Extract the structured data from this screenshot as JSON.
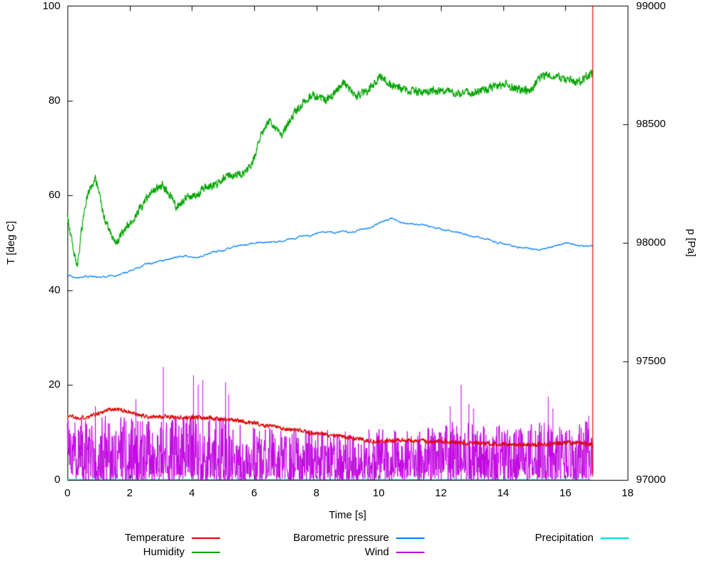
{
  "chart_data": {
    "type": "line",
    "title": "",
    "xlabel": "Time [s]",
    "ylabel_left": "T [deg C]",
    "ylabel_right": "p [Pa]",
    "x_range": [
      0,
      18
    ],
    "y_left_range": [
      0,
      100
    ],
    "y_right_range": [
      97000,
      99000
    ],
    "x_ticks": [
      0,
      2,
      4,
      6,
      8,
      10,
      12,
      14,
      16,
      18
    ],
    "y_left_ticks": [
      0,
      20,
      40,
      60,
      80,
      100
    ],
    "y_right_ticks": [
      97000,
      97500,
      98000,
      98500,
      99000
    ],
    "grid": false,
    "legend_position": "below",
    "x_end": 16.88,
    "seed": 1337,
    "draw_order": [
      4,
      3,
      2,
      1,
      0
    ],
    "series": [
      {
        "name": "Temperature",
        "color": "#dd0000",
        "axis": "left",
        "line_width": 1.2,
        "noise_amp": 0.28,
        "noise_smooth": 0.35,
        "step": 0.01,
        "end_line": [
          16.88,
          0.8,
          100
        ],
        "points": [
          [
            0,
            13.2
          ],
          [
            0.1,
            13.6
          ],
          [
            0.3,
            13.1
          ],
          [
            0.5,
            13.2
          ],
          [
            0.7,
            13.4
          ],
          [
            0.9,
            13.8
          ],
          [
            1.1,
            14.3
          ],
          [
            1.3,
            14.8
          ],
          [
            1.5,
            15.0
          ],
          [
            1.7,
            14.8
          ],
          [
            1.9,
            14.5
          ],
          [
            2.1,
            14.0
          ],
          [
            2.3,
            13.6
          ],
          [
            2.5,
            13.4
          ],
          [
            2.8,
            13.3
          ],
          [
            3.2,
            13.4
          ],
          [
            3.6,
            13.2
          ],
          [
            4.0,
            13.1
          ],
          [
            4.4,
            13.2
          ],
          [
            4.8,
            12.9
          ],
          [
            5.2,
            12.7
          ],
          [
            5.6,
            12.4
          ],
          [
            6.0,
            12.0
          ],
          [
            6.4,
            11.5
          ],
          [
            6.8,
            11.0
          ],
          [
            7.2,
            10.6
          ],
          [
            7.6,
            10.2
          ],
          [
            8.0,
            9.8
          ],
          [
            8.4,
            9.5
          ],
          [
            8.8,
            9.2
          ],
          [
            9.2,
            8.8
          ],
          [
            9.6,
            8.4
          ],
          [
            10.0,
            8.1
          ],
          [
            10.4,
            8.3
          ],
          [
            10.8,
            8.4
          ],
          [
            11.2,
            8.3
          ],
          [
            11.6,
            8.1
          ],
          [
            12.0,
            8.0
          ],
          [
            12.5,
            7.9
          ],
          [
            13.0,
            7.8
          ],
          [
            13.5,
            7.7
          ],
          [
            14.0,
            7.6
          ],
          [
            14.5,
            7.5
          ],
          [
            15.0,
            7.5
          ],
          [
            15.5,
            7.6
          ],
          [
            16.0,
            7.9
          ],
          [
            16.4,
            7.8
          ],
          [
            16.7,
            7.6
          ],
          [
            16.88,
            7.5
          ]
        ]
      },
      {
        "name": "Humidity",
        "color": "#00a400",
        "axis": "left",
        "line_width": 1.2,
        "noise_amp": 0.55,
        "noise_smooth": 0.35,
        "step": 0.01,
        "points": [
          [
            0,
            56
          ],
          [
            0.08,
            52
          ],
          [
            0.15,
            50
          ],
          [
            0.25,
            46.5
          ],
          [
            0.32,
            45
          ],
          [
            0.4,
            50
          ],
          [
            0.5,
            55
          ],
          [
            0.6,
            59
          ],
          [
            0.7,
            61
          ],
          [
            0.8,
            62.5
          ],
          [
            0.9,
            63.5
          ],
          [
            1.0,
            61
          ],
          [
            1.1,
            58
          ],
          [
            1.2,
            55
          ],
          [
            1.35,
            52.5
          ],
          [
            1.5,
            50.5
          ],
          [
            1.6,
            50
          ],
          [
            1.75,
            52
          ],
          [
            1.9,
            53.5
          ],
          [
            2.0,
            54
          ],
          [
            2.15,
            55.5
          ],
          [
            2.3,
            57
          ],
          [
            2.5,
            59
          ],
          [
            2.7,
            60.5
          ],
          [
            2.9,
            61.5
          ],
          [
            3.05,
            62
          ],
          [
            3.2,
            61
          ],
          [
            3.35,
            59.5
          ],
          [
            3.5,
            57.5
          ],
          [
            3.65,
            58.5
          ],
          [
            3.8,
            59.5
          ],
          [
            4.0,
            60
          ],
          [
            4.2,
            60.5
          ],
          [
            4.4,
            61.5
          ],
          [
            4.6,
            62
          ],
          [
            4.8,
            62.5
          ],
          [
            5.0,
            63.5
          ],
          [
            5.2,
            64.5
          ],
          [
            5.35,
            64
          ],
          [
            5.5,
            65
          ],
          [
            5.65,
            64.5
          ],
          [
            5.8,
            65.5
          ],
          [
            5.95,
            67
          ],
          [
            6.1,
            70
          ],
          [
            6.25,
            73
          ],
          [
            6.4,
            75
          ],
          [
            6.55,
            75.5
          ],
          [
            6.7,
            74
          ],
          [
            6.85,
            72.5
          ],
          [
            7.0,
            74
          ],
          [
            7.15,
            76
          ],
          [
            7.3,
            77.5
          ],
          [
            7.5,
            79
          ],
          [
            7.7,
            80.5
          ],
          [
            7.9,
            81
          ],
          [
            8.1,
            80.5
          ],
          [
            8.3,
            80
          ],
          [
            8.5,
            81
          ],
          [
            8.7,
            82.5
          ],
          [
            8.85,
            84
          ],
          [
            9.0,
            83
          ],
          [
            9.15,
            81.5
          ],
          [
            9.3,
            81
          ],
          [
            9.5,
            81.5
          ],
          [
            9.7,
            82.5
          ],
          [
            9.9,
            84
          ],
          [
            10.05,
            85
          ],
          [
            10.2,
            84.5
          ],
          [
            10.35,
            83.5
          ],
          [
            10.5,
            83
          ],
          [
            10.7,
            82.5
          ],
          [
            10.9,
            82
          ],
          [
            11.1,
            82
          ],
          [
            11.4,
            81.8
          ],
          [
            11.7,
            82
          ],
          [
            12.0,
            82.2
          ],
          [
            12.3,
            81.8
          ],
          [
            12.6,
            81.5
          ],
          [
            12.9,
            81.6
          ],
          [
            13.2,
            82
          ],
          [
            13.5,
            82.5
          ],
          [
            13.8,
            83
          ],
          [
            14.1,
            83.5
          ],
          [
            14.35,
            82.8
          ],
          [
            14.6,
            82
          ],
          [
            14.85,
            82.3
          ],
          [
            15.1,
            84
          ],
          [
            15.3,
            85.2
          ],
          [
            15.5,
            85.5
          ],
          [
            15.7,
            85
          ],
          [
            15.9,
            84.8
          ],
          [
            16.1,
            84.5
          ],
          [
            16.3,
            84
          ],
          [
            16.5,
            84.2
          ],
          [
            16.7,
            85
          ],
          [
            16.88,
            86
          ]
        ]
      },
      {
        "name": "Barometric pressure",
        "color": "#0080ff",
        "axis": "right",
        "line_width": 1.2,
        "noise_amp": 9,
        "noise_smooth": 0.9,
        "step": 0.01,
        "points": [
          [
            0,
            97862
          ],
          [
            0.2,
            97858
          ],
          [
            0.4,
            97856
          ],
          [
            0.6,
            97862
          ],
          [
            0.8,
            97860
          ],
          [
            1.0,
            97858
          ],
          [
            1.2,
            97856
          ],
          [
            1.4,
            97860
          ],
          [
            1.6,
            97866
          ],
          [
            1.8,
            97872
          ],
          [
            2.0,
            97880
          ],
          [
            2.2,
            97892
          ],
          [
            2.4,
            97902
          ],
          [
            2.6,
            97912
          ],
          [
            2.8,
            97916
          ],
          [
            3.0,
            97920
          ],
          [
            3.2,
            97928
          ],
          [
            3.4,
            97936
          ],
          [
            3.6,
            97942
          ],
          [
            3.8,
            97946
          ],
          [
            4.0,
            97944
          ],
          [
            4.2,
            97940
          ],
          [
            4.4,
            97948
          ],
          [
            4.6,
            97956
          ],
          [
            4.8,
            97962
          ],
          [
            5.0,
            97968
          ],
          [
            5.2,
            97976
          ],
          [
            5.4,
            97982
          ],
          [
            5.6,
            97988
          ],
          [
            5.8,
            97994
          ],
          [
            6.0,
            98000
          ],
          [
            6.2,
            98004
          ],
          [
            6.4,
            98000
          ],
          [
            6.6,
            98002
          ],
          [
            6.8,
            98006
          ],
          [
            7.0,
            98012
          ],
          [
            7.2,
            98018
          ],
          [
            7.4,
            98022
          ],
          [
            7.6,
            98026
          ],
          [
            7.8,
            98032
          ],
          [
            8.0,
            98040
          ],
          [
            8.2,
            98048
          ],
          [
            8.4,
            98044
          ],
          [
            8.6,
            98042
          ],
          [
            8.8,
            98050
          ],
          [
            9.0,
            98048
          ],
          [
            9.2,
            98046
          ],
          [
            9.4,
            98052
          ],
          [
            9.6,
            98060
          ],
          [
            9.8,
            98068
          ],
          [
            10.0,
            98080
          ],
          [
            10.2,
            98092
          ],
          [
            10.4,
            98100
          ],
          [
            10.6,
            98096
          ],
          [
            10.8,
            98088
          ],
          [
            11.0,
            98084
          ],
          [
            11.2,
            98080
          ],
          [
            11.4,
            98076
          ],
          [
            11.6,
            98070
          ],
          [
            11.8,
            98064
          ],
          [
            12.0,
            98058
          ],
          [
            12.2,
            98052
          ],
          [
            12.4,
            98048
          ],
          [
            12.6,
            98042
          ],
          [
            12.8,
            98036
          ],
          [
            13.0,
            98030
          ],
          [
            13.2,
            98026
          ],
          [
            13.4,
            98018
          ],
          [
            13.6,
            98010
          ],
          [
            13.8,
            98004
          ],
          [
            14.0,
            97998
          ],
          [
            14.2,
            97992
          ],
          [
            14.4,
            97986
          ],
          [
            14.6,
            97980
          ],
          [
            14.8,
            97976
          ],
          [
            15.0,
            97972
          ],
          [
            15.2,
            97970
          ],
          [
            15.4,
            97976
          ],
          [
            15.6,
            97984
          ],
          [
            15.8,
            97990
          ],
          [
            16.0,
            97994
          ],
          [
            16.2,
            97992
          ],
          [
            16.4,
            97988
          ],
          [
            16.6,
            97982
          ],
          [
            16.8,
            97984
          ],
          [
            16.88,
            97986
          ]
        ]
      },
      {
        "name": "Wind",
        "color": "#c000e0",
        "axis": "left",
        "line_width": 1,
        "render": "noise",
        "exponent": 1.6,
        "step": 0.01,
        "envelope": [
          [
            0,
            13
          ],
          [
            0.5,
            14
          ],
          [
            1.0,
            14
          ],
          [
            1.5,
            13.5
          ],
          [
            2.0,
            13
          ],
          [
            2.5,
            12.5
          ],
          [
            3.0,
            13
          ],
          [
            3.5,
            13.5
          ],
          [
            4.0,
            14
          ],
          [
            4.5,
            13
          ],
          [
            5.0,
            14
          ],
          [
            5.5,
            12
          ],
          [
            6.0,
            11.5
          ],
          [
            6.5,
            11
          ],
          [
            7.0,
            11
          ],
          [
            7.5,
            10.5
          ],
          [
            8.0,
            11
          ],
          [
            8.5,
            10.5
          ],
          [
            9.0,
            10.5
          ],
          [
            9.5,
            10.5
          ],
          [
            10.0,
            11
          ],
          [
            10.5,
            10.5
          ],
          [
            11.0,
            10.5
          ],
          [
            11.5,
            11
          ],
          [
            12.0,
            12
          ],
          [
            12.5,
            12.5
          ],
          [
            13.0,
            12.5
          ],
          [
            13.5,
            11.5
          ],
          [
            14.0,
            12
          ],
          [
            14.5,
            11
          ],
          [
            15.0,
            12
          ],
          [
            15.5,
            12.5
          ],
          [
            16.0,
            12
          ],
          [
            16.5,
            12
          ],
          [
            16.88,
            13
          ]
        ],
        "spikes": [
          [
            0.9,
            15.5
          ],
          [
            2.2,
            17
          ],
          [
            3.08,
            23.8
          ],
          [
            4.05,
            22
          ],
          [
            4.2,
            20
          ],
          [
            4.35,
            21
          ],
          [
            5.08,
            20.5
          ],
          [
            5.18,
            18
          ],
          [
            12.3,
            15.5
          ],
          [
            12.65,
            20
          ],
          [
            12.9,
            16
          ],
          [
            13.05,
            15
          ],
          [
            15.45,
            17.5
          ],
          [
            15.6,
            15
          ],
          [
            16.75,
            13.5
          ]
        ]
      },
      {
        "name": "Precipitation",
        "color": "#00dddd",
        "axis": "left",
        "line_width": 1.2,
        "noise_amp": 0,
        "noise_smooth": 0,
        "step": 0.1,
        "points": [
          [
            0,
            0.1
          ],
          [
            16.88,
            0.1
          ]
        ]
      }
    ]
  }
}
